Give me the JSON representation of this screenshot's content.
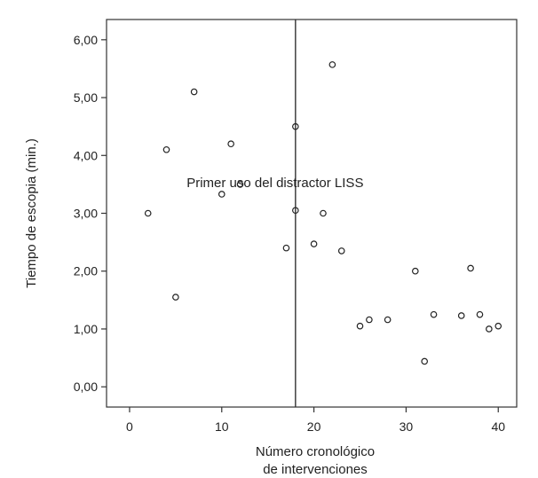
{
  "chart_data": {
    "type": "scatter",
    "xlabel_lines": [
      "Número cronológico",
      "de intervenciones"
    ],
    "ylabel": "Tiempo de escopia (min.)",
    "xlim": [
      -2.5,
      42
    ],
    "ylim": [
      -0.35,
      6.35
    ],
    "xticks": [
      0,
      10,
      20,
      30,
      40
    ],
    "xtick_labels": [
      "0",
      "10",
      "20",
      "30",
      "40"
    ],
    "yticks": [
      0,
      1,
      2,
      3,
      4,
      5,
      6
    ],
    "ytick_labels": [
      "0,00",
      "1,00",
      "2,00",
      "3,00",
      "4,00",
      "5,00",
      "6,00"
    ],
    "grid": false,
    "reference_line": {
      "x": 18,
      "label": "Primer uso del distractor LISS"
    },
    "points": [
      {
        "x": 2,
        "y": 3.0
      },
      {
        "x": 4,
        "y": 4.1
      },
      {
        "x": 5,
        "y": 1.55
      },
      {
        "x": 7,
        "y": 5.1
      },
      {
        "x": 10,
        "y": 3.33
      },
      {
        "x": 11,
        "y": 4.2
      },
      {
        "x": 12,
        "y": 3.5
      },
      {
        "x": 17,
        "y": 2.4
      },
      {
        "x": 18,
        "y": 4.5
      },
      {
        "x": 18,
        "y": 3.05
      },
      {
        "x": 20,
        "y": 2.47
      },
      {
        "x": 21,
        "y": 3.0
      },
      {
        "x": 22,
        "y": 5.57
      },
      {
        "x": 23,
        "y": 2.35
      },
      {
        "x": 25,
        "y": 1.05
      },
      {
        "x": 26,
        "y": 1.16
      },
      {
        "x": 28,
        "y": 1.16
      },
      {
        "x": 31,
        "y": 2.0
      },
      {
        "x": 32,
        "y": 0.44
      },
      {
        "x": 33,
        "y": 1.25
      },
      {
        "x": 36,
        "y": 1.23
      },
      {
        "x": 37,
        "y": 2.05
      },
      {
        "x": 38,
        "y": 1.25
      },
      {
        "x": 39,
        "y": 1.0
      },
      {
        "x": 40,
        "y": 1.05
      }
    ]
  }
}
